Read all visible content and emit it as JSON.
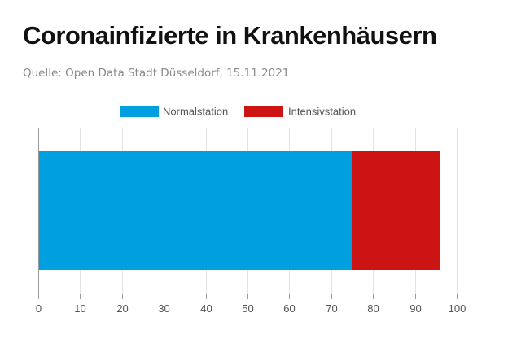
{
  "header": {
    "title": "Coronainfizierte in Krankenhäusern",
    "source": "Quelle: Open Data Stadt Düsseldorf, 15.11.2021"
  },
  "chart_data": {
    "type": "bar",
    "orientation": "horizontal",
    "stacked": true,
    "categories": [
      ""
    ],
    "series": [
      {
        "name": "Normalstation",
        "values": [
          75
        ],
        "color": "#009fe0"
      },
      {
        "name": "Intensivstation",
        "values": [
          21
        ],
        "color": "#cc1414"
      }
    ],
    "xlim": [
      0,
      100
    ],
    "xticks": [
      0,
      10,
      20,
      30,
      40,
      50,
      60,
      70,
      80,
      90,
      100
    ],
    "grid": true,
    "legend": "top-center"
  }
}
